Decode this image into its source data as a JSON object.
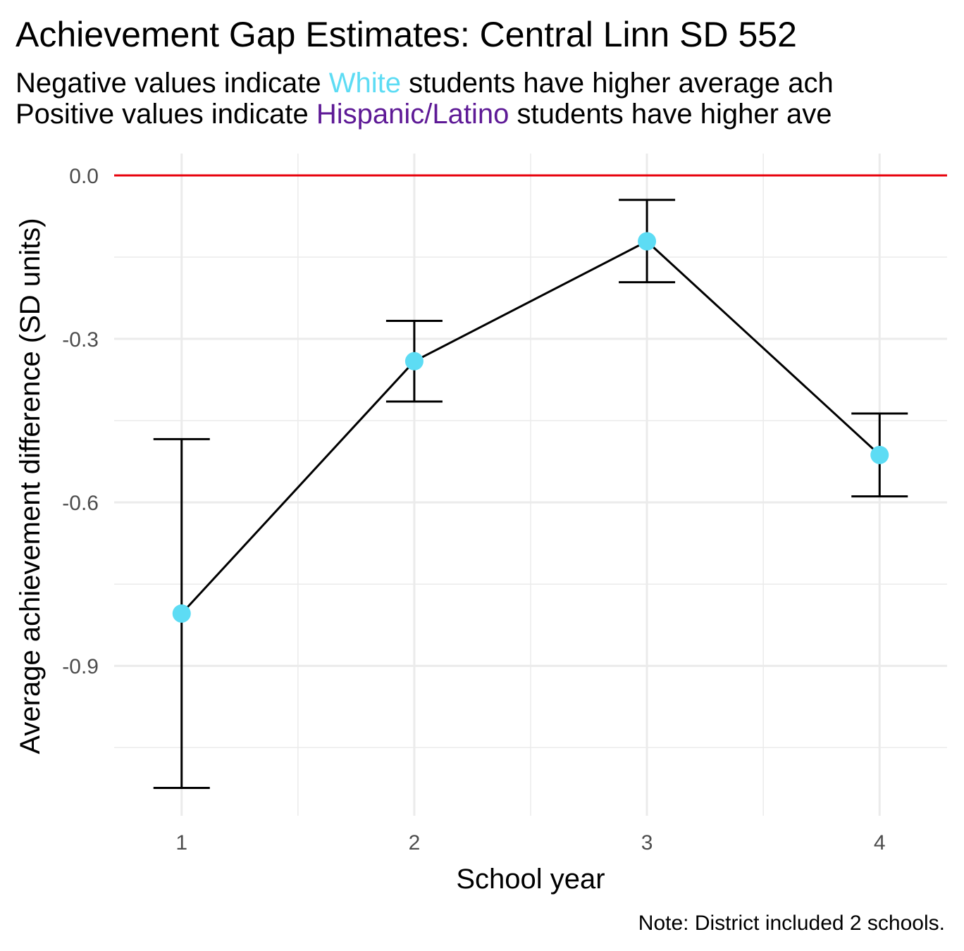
{
  "chart_data": {
    "type": "line",
    "title": "Achievement Gap Estimates: Central Linn SD 552",
    "subtitle": {
      "line1": {
        "before": "Negative values indicate ",
        "highlight": "White",
        "after": " students have higher average ach"
      },
      "line2": {
        "before": "Positive values indicate ",
        "highlight": "Hispanic/Latino",
        "after": " students have higher ave"
      }
    },
    "xlabel": "School year",
    "ylabel": "Average achievement difference (SD units)",
    "caption": "Note: District included 2 schools.",
    "x": [
      1,
      2,
      3,
      4
    ],
    "x_tick_labels": [
      "1",
      "2",
      "3",
      "4"
    ],
    "y_ticks": [
      0.0,
      -0.3,
      -0.6,
      -0.9
    ],
    "y_tick_labels": [
      "0.0",
      "-0.3",
      "-0.6",
      "-0.9"
    ],
    "xlim": [
      0.71,
      4.29
    ],
    "ylim": [
      -1.175,
      0.04
    ],
    "reference_line": {
      "y": 0.0,
      "color": "#E8000B"
    },
    "series": [
      {
        "values": [
          -0.804,
          -0.341,
          -0.121,
          -0.513
        ],
        "lower": [
          -1.124,
          -0.415,
          -0.196,
          -0.589
        ],
        "upper": [
          -0.484,
          -0.267,
          -0.045,
          -0.437
        ],
        "point_color": "#5DDCF4",
        "line_color": "#000000"
      }
    ],
    "legend": "none",
    "grid": true,
    "colors": {
      "white_label": "#5DDCF4",
      "hispanic_label": "#5E1A96",
      "grid": "#EBEBEB"
    }
  }
}
